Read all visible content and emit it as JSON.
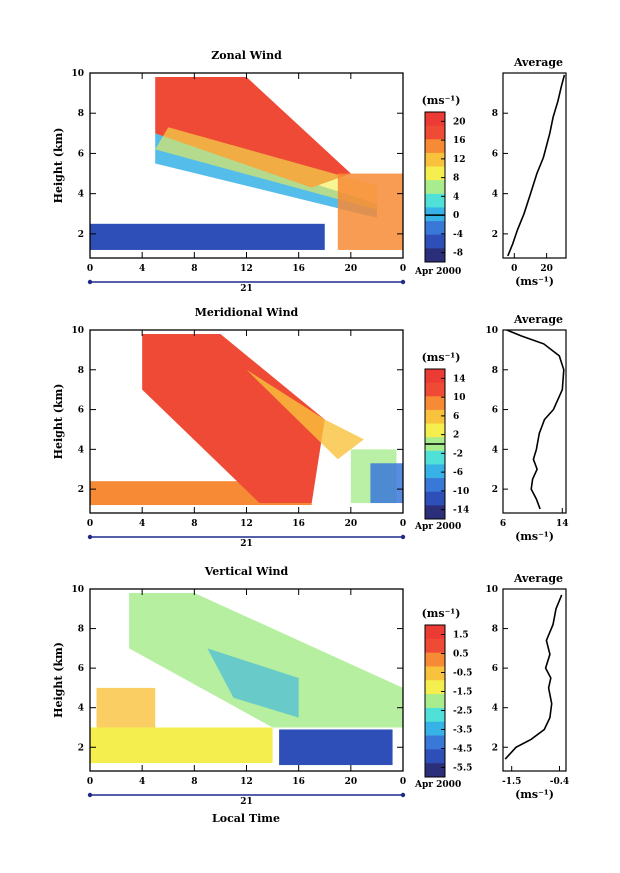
{
  "figure": {
    "date_label": "Apr 2000",
    "day_label": "21",
    "xlabel": "Local Time"
  },
  "chart_data": [
    {
      "type": "heatmap",
      "title": "Zonal Wind",
      "xlabel": "",
      "ylabel": "Height (km)",
      "x_ticks": [
        "0",
        "4",
        "8",
        "12",
        "16",
        "20",
        "0"
      ],
      "y_ticks": [
        "2",
        "4",
        "6",
        "8",
        "10"
      ],
      "xlim": [
        0,
        24
      ],
      "ylim": [
        0.8,
        10
      ],
      "colorbar": {
        "unit": "(ms⁻¹)",
        "ticks": [
          "20",
          "16",
          "12",
          "8",
          "4",
          "0",
          "-4",
          "-8"
        ],
        "range": [
          -10,
          22
        ],
        "zero_line": 0
      },
      "average_profile": {
        "title": "Average",
        "xlabel": "(ms⁻¹)",
        "x_ticks": [
          "0",
          "20"
        ],
        "y_ticks": [
          "2",
          "4",
          "6",
          "8"
        ],
        "xlim": [
          -7,
          32
        ],
        "ylim": [
          0.8,
          10
        ],
        "points": [
          [
            -4,
            0.9
          ],
          [
            -1,
            1.5
          ],
          [
            2,
            2.2
          ],
          [
            6,
            3
          ],
          [
            10,
            4
          ],
          [
            14,
            5
          ],
          [
            18,
            5.8
          ],
          [
            22,
            7
          ],
          [
            24,
            7.8
          ],
          [
            27,
            8.6
          ],
          [
            29,
            9.3
          ],
          [
            31,
            9.9
          ]
        ]
      }
    },
    {
      "type": "heatmap",
      "title": "Meridional Wind",
      "xlabel": "",
      "ylabel": "Height (km)",
      "x_ticks": [
        "0",
        "4",
        "8",
        "12",
        "16",
        "20",
        "0"
      ],
      "y_ticks": [
        "2",
        "4",
        "6",
        "8",
        "10"
      ],
      "xlim": [
        0,
        24
      ],
      "ylim": [
        0.8,
        10
      ],
      "colorbar": {
        "unit": "(ms⁻¹)",
        "ticks": [
          "14",
          "10",
          "6",
          "2",
          "-2",
          "-6",
          "-10",
          "-14"
        ],
        "range": [
          -16,
          16
        ],
        "zero_line": 0
      },
      "average_profile": {
        "title": "Average",
        "xlabel": "(ms⁻¹)",
        "x_ticks": [
          "6",
          "14"
        ],
        "y_ticks": [
          "2",
          "4",
          "6",
          "8",
          "10"
        ],
        "xlim": [
          6,
          14.5
        ],
        "ylim": [
          0.8,
          10
        ],
        "points": [
          [
            11,
            1
          ],
          [
            10.5,
            1.5
          ],
          [
            9.8,
            2
          ],
          [
            10,
            2.5
          ],
          [
            10.6,
            3
          ],
          [
            10.1,
            3.5
          ],
          [
            10.5,
            4
          ],
          [
            10.9,
            4.8
          ],
          [
            11.6,
            5.5
          ],
          [
            12.8,
            6
          ],
          [
            14,
            7
          ],
          [
            14.2,
            8
          ],
          [
            13.6,
            8.7
          ],
          [
            11.5,
            9.3
          ],
          [
            8.5,
            9.7
          ],
          [
            6.5,
            10
          ]
        ]
      }
    },
    {
      "type": "heatmap",
      "title": "Vertical Wind",
      "xlabel": "Local Time",
      "ylabel": "Height (km)",
      "x_ticks": [
        "0",
        "4",
        "8",
        "12",
        "16",
        "20",
        "0"
      ],
      "y_ticks": [
        "2",
        "4",
        "6",
        "8",
        "10"
      ],
      "xlim": [
        0,
        24
      ],
      "ylim": [
        0.8,
        10
      ],
      "colorbar": {
        "unit": "(ms⁻¹)",
        "ticks": [
          "1.5",
          "0.5",
          "-0.5",
          "-1.5",
          "-2.5",
          "-3.5",
          "-4.5",
          "-5.5"
        ],
        "range": [
          -6,
          2
        ],
        "zero_line": null
      },
      "average_profile": {
        "title": "Average",
        "xlabel": "(ms⁻¹)",
        "x_ticks": [
          "-1.5",
          "-0.4"
        ],
        "y_ticks": [
          "2",
          "4",
          "6",
          "8",
          "10"
        ],
        "xlim": [
          -1.7,
          -0.25
        ],
        "ylim": [
          0.8,
          10
        ],
        "points": [
          [
            -1.65,
            1.4
          ],
          [
            -1.4,
            2
          ],
          [
            -1.05,
            2.4
          ],
          [
            -0.75,
            2.9
          ],
          [
            -0.62,
            3.5
          ],
          [
            -0.58,
            4.2
          ],
          [
            -0.65,
            5
          ],
          [
            -0.6,
            5.5
          ],
          [
            -0.72,
            6
          ],
          [
            -0.62,
            6.7
          ],
          [
            -0.7,
            7.4
          ],
          [
            -0.55,
            8.2
          ],
          [
            -0.48,
            9
          ],
          [
            -0.35,
            9.7
          ]
        ]
      }
    }
  ]
}
